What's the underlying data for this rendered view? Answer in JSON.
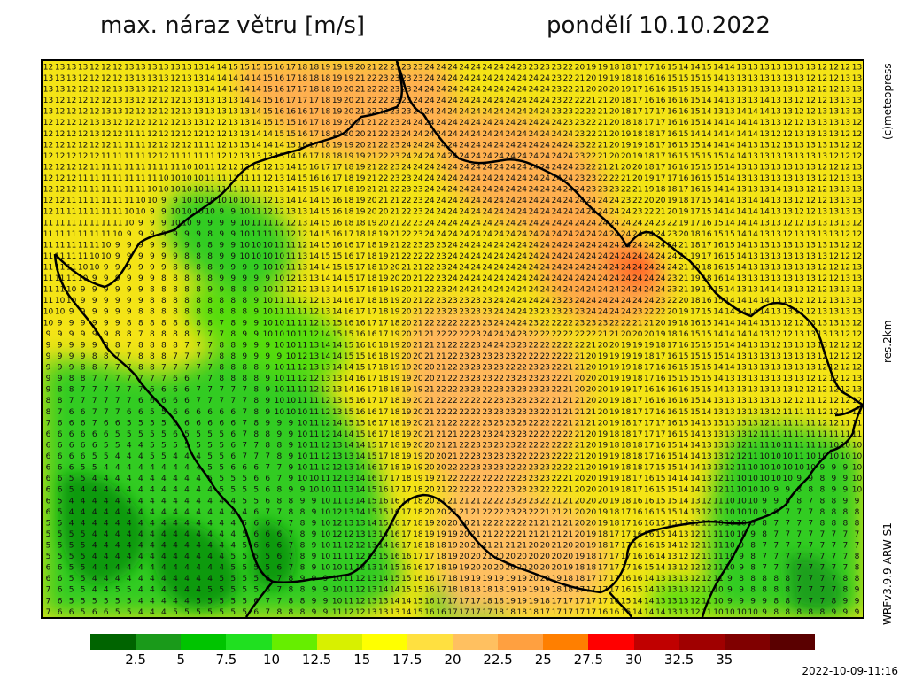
{
  "header": {
    "title": "max. náraz větru [m/s]",
    "date": "pondělí 10.10.2022"
  },
  "side_labels": {
    "copyright": "(c)meteopress",
    "resolution": "res.2km",
    "model": "WRFv3.9.9-ARW-S1"
  },
  "timestamp": "2022-10-09-11:16",
  "legend": {
    "colors": [
      "#006400",
      "#1a9a1a",
      "#00c400",
      "#20e020",
      "#66ee00",
      "#d8f000",
      "#ffff00",
      "#ffe040",
      "#ffc060",
      "#ffa040",
      "#ff7f00",
      "#ff0000",
      "#c00000",
      "#a00000",
      "#800000",
      "#5a0000"
    ],
    "ticks": [
      "2.5",
      "5",
      "7.5",
      "10",
      "12.5",
      "15",
      "17.5",
      "20",
      "22.5",
      "25",
      "27.5",
      "30",
      "32.5",
      "35"
    ]
  }
}
